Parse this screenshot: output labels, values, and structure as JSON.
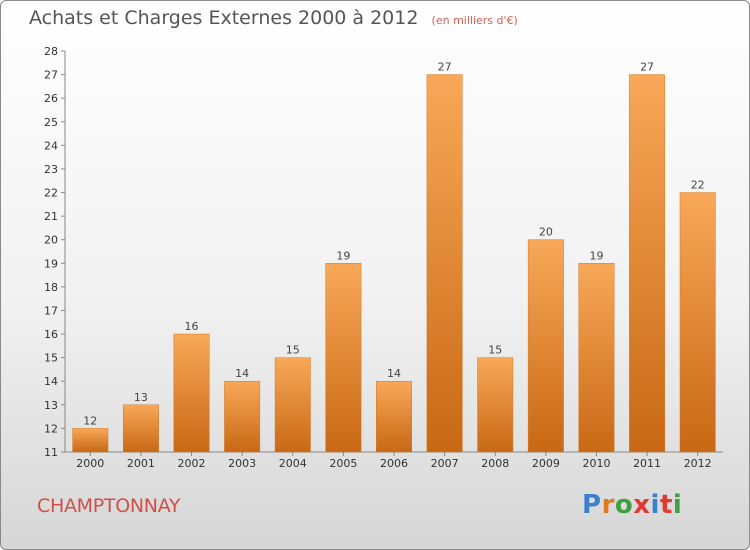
{
  "header": {
    "title": "Achats et Charges Externes 2000 à 2012",
    "unit": "(en milliers d'€)"
  },
  "commune": "CHAMPTONNAY",
  "brand": {
    "letters": [
      "P",
      "r",
      "o",
      "x",
      "i",
      "t",
      "i"
    ],
    "colors": [
      "#3a7fd0",
      "#e07a20",
      "#3fa040",
      "#e03a30",
      "#3a7fd0",
      "#e03a30",
      "#3fa040"
    ]
  },
  "chart_data": {
    "type": "bar",
    "categories": [
      "2000",
      "2001",
      "2002",
      "2003",
      "2004",
      "2005",
      "2006",
      "2007",
      "2008",
      "2009",
      "2010",
      "2011",
      "2012"
    ],
    "values": [
      12,
      13,
      16,
      14,
      15,
      19,
      14,
      27,
      15,
      20,
      19,
      27,
      22
    ],
    "data_labels": [
      "12",
      "13",
      "16",
      "14",
      "15",
      "19",
      "14",
      "27",
      "15",
      "20",
      "19",
      "27",
      "22"
    ],
    "ylim": [
      11,
      28
    ],
    "yticks": [
      "11",
      "12",
      "13",
      "14",
      "15",
      "16",
      "17",
      "18",
      "19",
      "20",
      "21",
      "22",
      "23",
      "24",
      "25",
      "26",
      "27",
      "28"
    ],
    "grid": false,
    "bar_color": "#f0922e"
  }
}
